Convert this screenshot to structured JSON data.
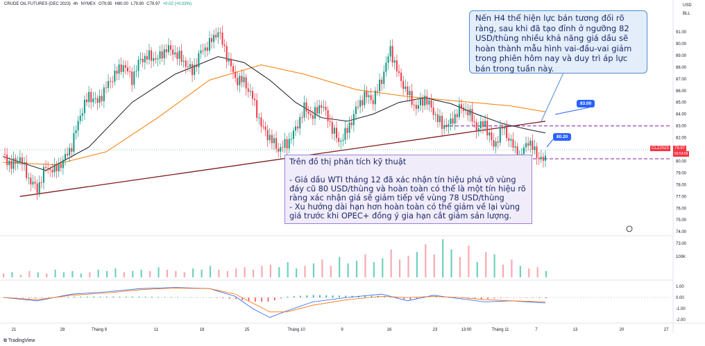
{
  "header": {
    "symbol": "CRUDE OIL FUTURES (DEC 2023)",
    "interval": "4h",
    "exchange": "NYMEX",
    "open": "O79.95",
    "high": "H80.00",
    "low": "L79.90",
    "close": "C79.97",
    "change": "+0.02 (+0.03%)"
  },
  "currency": {
    "ccy": "USD",
    "unit": "BLL"
  },
  "annotations": {
    "top_right": "Nến H4 thể hiện lực bán tương đối rõ ràng, sau khi đã tạo đỉnh ở ngưỡng 82 USD/thùng nhiều khả năng giá dầu sẽ hoàn thành mẫu hình vai-đầu-vai giảm trong phiên hôm nay và duy trì áp lực bán trong tuần này.",
    "analysis_title": "Trên đồ thị phân tích kỹ thuật",
    "analysis_body": "- Giá dầu WTI tháng 12 đã xác nhận tín hiệu phá vỡ vùng đáy cũ 80 USD/thùng và hoàn toàn có thể là một tín hiệu rõ ràng xác nhận giá sẽ giảm tiếp về vùng 78 USD/thùng\n- Xu hướng dài hạn hơn hoàn toàn có thể giảm về lại vùng giá trước khi OPEC+ đồng ý gia hạn cắt giảm sản lượng."
  },
  "level_labels": {
    "upper": "83.00",
    "lower": "80.20"
  },
  "price_tag": {
    "symbol": "CLZ2023",
    "price": "79.97",
    "countdown": "03:54:59"
  },
  "price_axis": [
    "91.00",
    "90.00",
    "89.00",
    "88.00",
    "87.00",
    "86.00",
    "85.00",
    "84.00",
    "83.00",
    "82.00",
    "81.00",
    "80.00",
    "79.00",
    "78.00",
    "77.00",
    "76.00",
    "75.00",
    "74.00",
    "73.00"
  ],
  "volume_axis": [
    "100K"
  ],
  "osc_axis": [
    "1.00",
    "0.00",
    "-1.00",
    "-2.00"
  ],
  "time_axis": [
    "21",
    "28",
    "Tháng 9",
    "11",
    "18",
    "25",
    "Tháng 10",
    "9",
    "16",
    "23",
    "13:00",
    "Tháng 11",
    "7",
    "13",
    "20",
    "27"
  ],
  "branding": "TradingView",
  "colors": {
    "up": "#089981",
    "down": "#f23645",
    "ma_fast": "#131722",
    "ma_slow": "#f57c00",
    "trendline": "#801a1a",
    "level": "#7b1fa2",
    "label": "#2962ff"
  },
  "chart_data": {
    "type": "candlestick",
    "price_range": [
      73,
      91.5
    ],
    "levels": [
      83.0,
      80.2
    ],
    "price_path": [
      [
        0,
        80.6
      ],
      [
        4,
        79.6
      ],
      [
        8,
        80.3
      ],
      [
        12,
        78.5
      ],
      [
        16,
        77.6
      ],
      [
        20,
        79.5
      ],
      [
        24,
        79.2
      ],
      [
        28,
        80.0
      ],
      [
        32,
        81.3
      ],
      [
        36,
        84.0
      ],
      [
        40,
        85.6
      ],
      [
        44,
        85.0
      ],
      [
        48,
        86.3
      ],
      [
        52,
        87.4
      ],
      [
        56,
        88.2
      ],
      [
        60,
        87.0
      ],
      [
        64,
        88.7
      ],
      [
        68,
        88.9
      ],
      [
        72,
        88.7
      ],
      [
        76,
        89.6
      ],
      [
        80,
        89.2
      ],
      [
        84,
        88.5
      ],
      [
        88,
        87.6
      ],
      [
        92,
        89.3
      ],
      [
        96,
        90.0
      ],
      [
        100,
        91.1
      ],
      [
        104,
        89.0
      ],
      [
        108,
        87.0
      ],
      [
        112,
        86.8
      ],
      [
        116,
        85.4
      ],
      [
        120,
        83.0
      ],
      [
        124,
        82.0
      ],
      [
        128,
        81.0
      ],
      [
        132,
        81.5
      ],
      [
        136,
        82.7
      ],
      [
        140,
        84.5
      ],
      [
        144,
        83.8
      ],
      [
        148,
        84.9
      ],
      [
        152,
        83.2
      ],
      [
        156,
        81.6
      ],
      [
        160,
        82.6
      ],
      [
        164,
        84.4
      ],
      [
        168,
        85.6
      ],
      [
        172,
        85.2
      ],
      [
        176,
        87.0
      ],
      [
        180,
        89.5
      ],
      [
        184,
        87.2
      ],
      [
        188,
        85.8
      ],
      [
        192,
        84.5
      ],
      [
        196,
        85.4
      ],
      [
        200,
        84.2
      ],
      [
        204,
        83.0
      ],
      [
        208,
        83.2
      ],
      [
        212,
        84.5
      ],
      [
        216,
        84.3
      ],
      [
        220,
        82.8
      ],
      [
        224,
        83.2
      ],
      [
        228,
        81.2
      ],
      [
        232,
        82.9
      ],
      [
        236,
        81.6
      ],
      [
        240,
        80.2
      ],
      [
        244,
        81.8
      ],
      [
        248,
        80.5
      ],
      [
        252,
        80.0
      ]
    ],
    "ma_fast": [
      [
        0,
        80.4
      ],
      [
        20,
        79.2
      ],
      [
        40,
        81.2
      ],
      [
        60,
        85.0
      ],
      [
        80,
        87.4
      ],
      [
        100,
        88.9
      ],
      [
        112,
        88.4
      ],
      [
        124,
        86.9
      ],
      [
        136,
        85.0
      ],
      [
        148,
        83.7
      ],
      [
        160,
        83.4
      ],
      [
        172,
        84.0
      ],
      [
        184,
        85.0
      ],
      [
        196,
        85.4
      ],
      [
        208,
        84.9
      ],
      [
        220,
        84.0
      ],
      [
        232,
        83.2
      ],
      [
        244,
        82.7
      ],
      [
        252,
        82.4
      ]
    ],
    "ma_slow": [
      [
        0,
        79.9
      ],
      [
        24,
        79.7
      ],
      [
        48,
        80.8
      ],
      [
        72,
        83.7
      ],
      [
        96,
        86.9
      ],
      [
        120,
        88.2
      ],
      [
        140,
        87.4
      ],
      [
        164,
        86.1
      ],
      [
        188,
        85.5
      ],
      [
        212,
        85.1
      ],
      [
        236,
        84.7
      ],
      [
        252,
        84.2
      ]
    ],
    "trendline": [
      [
        8,
        77.0
      ],
      [
        252,
        83.4
      ]
    ],
    "volume": [
      3,
      4,
      2,
      5,
      4,
      3,
      6,
      4,
      5,
      3,
      4,
      6,
      5,
      7,
      4,
      5,
      6,
      5,
      8,
      6,
      5,
      4,
      7,
      6,
      9,
      6,
      5,
      7,
      8,
      6,
      9,
      10,
      8,
      12,
      7,
      9,
      11,
      14,
      9,
      16,
      11,
      13,
      18,
      12,
      15,
      22,
      14,
      17,
      20,
      26,
      18,
      30,
      22,
      16,
      25,
      12,
      20,
      18,
      10,
      14,
      9,
      7,
      8,
      5
    ],
    "osc_macd": [
      [
        0,
        0.0
      ],
      [
        16,
        -0.3
      ],
      [
        32,
        0.3
      ],
      [
        48,
        0.5
      ],
      [
        64,
        0.8
      ],
      [
        80,
        0.9
      ],
      [
        96,
        0.8
      ],
      [
        108,
        0.1
      ],
      [
        116,
        -1.0
      ],
      [
        124,
        -1.8
      ],
      [
        132,
        -1.2
      ],
      [
        144,
        -0.4
      ],
      [
        160,
        0.0
      ],
      [
        176,
        0.3
      ],
      [
        188,
        -0.3
      ],
      [
        200,
        0.2
      ],
      [
        212,
        -0.1
      ],
      [
        224,
        -0.4
      ],
      [
        236,
        -0.3
      ],
      [
        252,
        -0.5
      ]
    ],
    "osc_signal": [
      [
        0,
        0.0
      ],
      [
        16,
        -0.2
      ],
      [
        32,
        0.2
      ],
      [
        48,
        0.4
      ],
      [
        64,
        0.7
      ],
      [
        80,
        0.85
      ],
      [
        96,
        0.8
      ],
      [
        108,
        0.3
      ],
      [
        116,
        -0.5
      ],
      [
        124,
        -1.3
      ],
      [
        132,
        -1.3
      ],
      [
        144,
        -0.7
      ],
      [
        160,
        -0.2
      ],
      [
        176,
        0.1
      ],
      [
        188,
        0.0
      ],
      [
        200,
        0.1
      ],
      [
        212,
        0.0
      ],
      [
        224,
        -0.2
      ],
      [
        236,
        -0.3
      ],
      [
        252,
        -0.4
      ]
    ]
  }
}
